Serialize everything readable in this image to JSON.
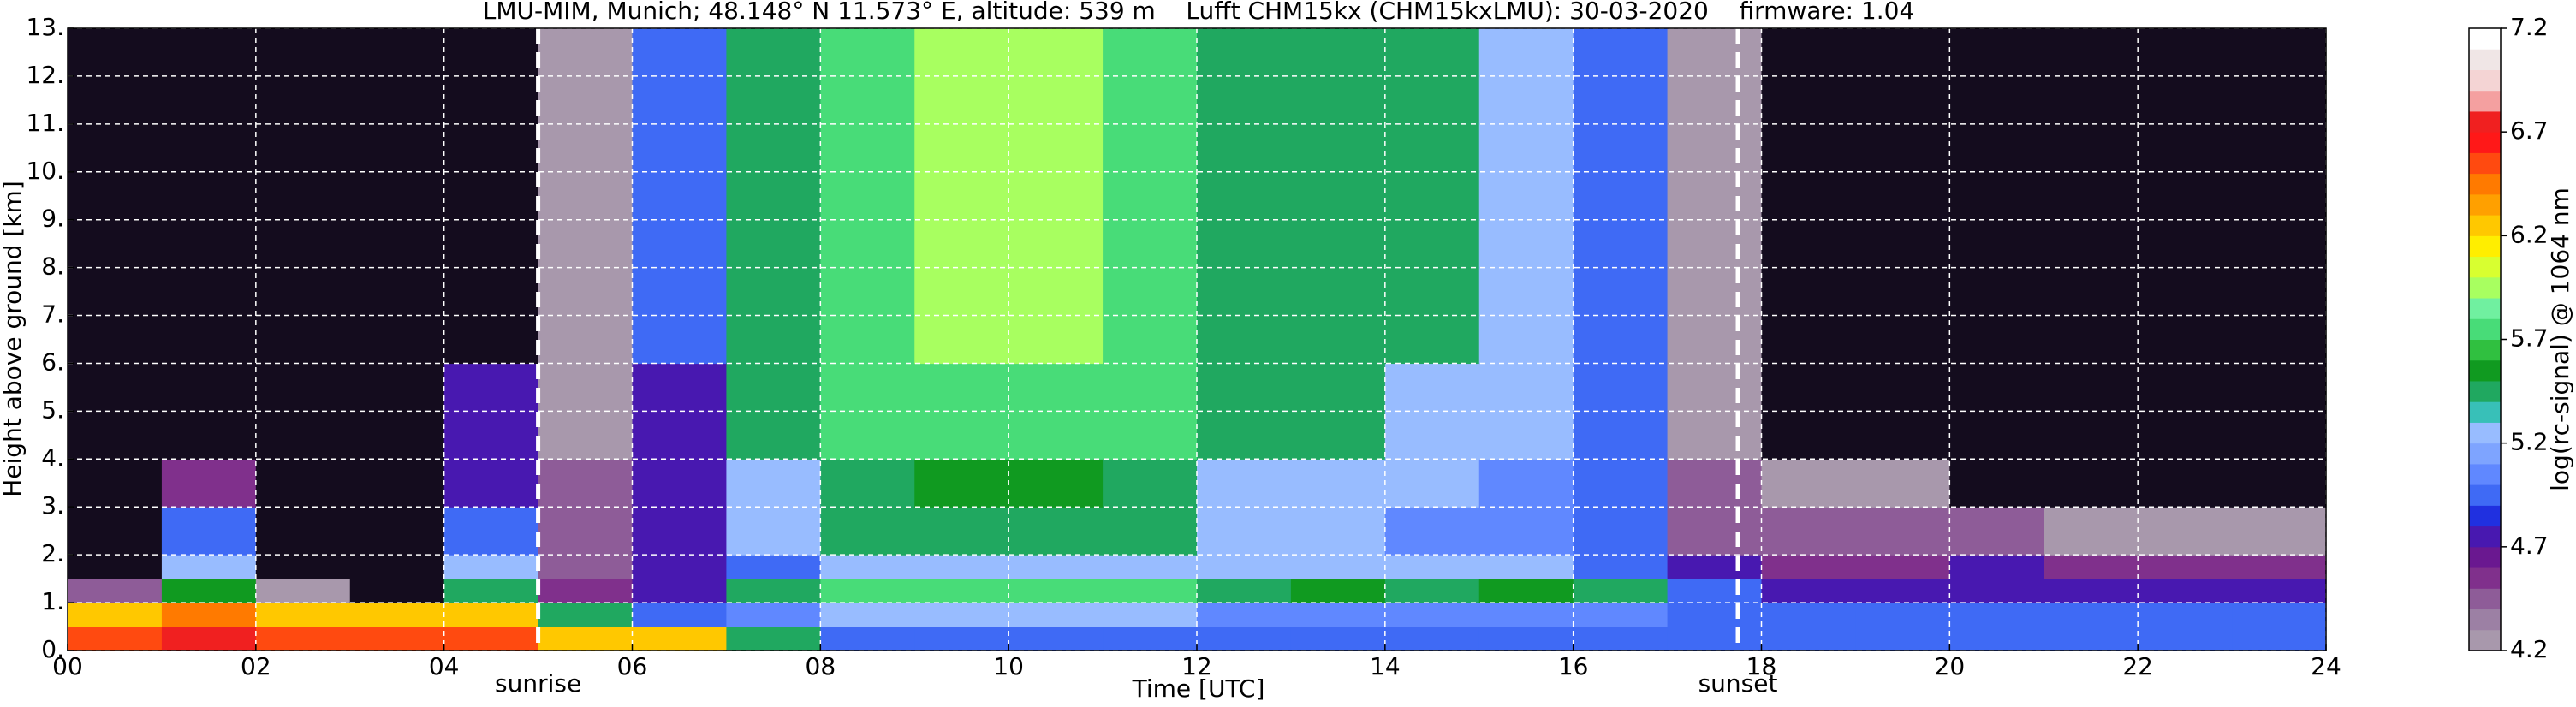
{
  "chart_data": {
    "type": "heatmap",
    "title": "LMU-MIM, Munich; 48.148° N 11.573° E, altitude: 539 m    Lufft CHM15kx (CHM15kxLMU): 30-03-2020    firmware: 1.04",
    "xlabel": "Time [UTC]",
    "ylabel": "Height above ground [km]",
    "x_edges": [
      0,
      1,
      2,
      3,
      4,
      5,
      6,
      7,
      8,
      9,
      10,
      11,
      12,
      13,
      14,
      15,
      16,
      17,
      18,
      19,
      20,
      21,
      22,
      23,
      24
    ],
    "y_edges": [
      0,
      0.5,
      1,
      1.5,
      2,
      3,
      4,
      6,
      9,
      13
    ],
    "values": [
      [
        6.6,
        6.7,
        6.6,
        6.5,
        6.6,
        6.3,
        6.2,
        5.4,
        5.0,
        5.0,
        5.0,
        5.0,
        5.0,
        5.0,
        5.0,
        5.0,
        5.0,
        4.9,
        4.9,
        4.9,
        4.9,
        4.9,
        4.9,
        4.9
      ],
      [
        6.3,
        6.4,
        6.2,
        6.2,
        6.3,
        5.5,
        5.0,
        5.1,
        5.2,
        5.2,
        5.2,
        5.2,
        5.1,
        5.1,
        5.1,
        5.1,
        5.1,
        5.0,
        5.0,
        5.0,
        4.9,
        4.9,
        4.9,
        4.9
      ],
      [
        4.4,
        5.6,
        4.2,
        4.0,
        5.4,
        4.6,
        4.8,
        5.5,
        5.7,
        5.7,
        5.7,
        5.7,
        5.5,
        5.6,
        5.5,
        5.6,
        5.4,
        5.0,
        4.8,
        4.8,
        4.8,
        4.8,
        4.7,
        4.7
      ],
      [
        4.0,
        5.3,
        3.9,
        3.9,
        5.2,
        4.5,
        4.7,
        5.0,
        5.2,
        5.2,
        5.2,
        5.2,
        5.3,
        5.3,
        5.3,
        5.3,
        5.0,
        4.7,
        4.6,
        4.6,
        4.7,
        4.6,
        4.6,
        4.6
      ],
      [
        3.9,
        5.0,
        3.9,
        3.9,
        4.9,
        4.4,
        4.8,
        5.2,
        5.4,
        5.5,
        5.5,
        5.4,
        5.2,
        5.2,
        5.1,
        5.1,
        4.9,
        4.5,
        4.4,
        4.4,
        4.4,
        4.3,
        4.3,
        4.3
      ],
      [
        3.8,
        4.6,
        3.8,
        3.8,
        4.8,
        4.4,
        4.8,
        5.3,
        5.5,
        5.6,
        5.6,
        5.5,
        5.3,
        5.3,
        5.2,
        5.1,
        4.9,
        4.4,
        4.2,
        4.2,
        4.1,
        4.1,
        4.1,
        4.1
      ],
      [
        3.8,
        3.8,
        3.8,
        3.8,
        4.7,
        4.3,
        4.8,
        5.4,
        5.7,
        5.8,
        5.8,
        5.7,
        5.4,
        5.4,
        5.3,
        5.2,
        5.0,
        4.3,
        4.0,
        4.0,
        4.0,
        4.0,
        4.0,
        4.0
      ],
      [
        3.7,
        3.7,
        3.7,
        3.7,
        3.9,
        4.3,
        4.9,
        5.5,
        5.8,
        5.9,
        5.9,
        5.8,
        5.5,
        5.5,
        5.4,
        5.3,
        5.0,
        4.3,
        3.9,
        3.9,
        3.9,
        3.9,
        3.9,
        3.9
      ],
      [
        3.7,
        3.7,
        3.7,
        3.7,
        3.7,
        4.3,
        4.9,
        5.5,
        5.8,
        5.9,
        5.9,
        5.8,
        5.5,
        5.5,
        5.4,
        5.3,
        5.0,
        4.3,
        3.9,
        3.9,
        3.9,
        3.9,
        3.9,
        3.9
      ]
    ],
    "xlim": [
      0,
      24
    ],
    "xticks": [
      {
        "value": 0,
        "label": "00"
      },
      {
        "value": 2,
        "label": "02"
      },
      {
        "value": 4,
        "label": "04"
      },
      {
        "value": 6,
        "label": "06"
      },
      {
        "value": 8,
        "label": "08"
      },
      10,
      12,
      14,
      16,
      18,
      20,
      22,
      24
    ],
    "ylim": [
      0,
      13
    ],
    "yticks": [
      {
        "value": 0,
        "label": "0."
      },
      {
        "value": 1,
        "label": "1."
      },
      {
        "value": 2,
        "label": "2."
      },
      {
        "value": 3,
        "label": "3."
      },
      {
        "value": 4,
        "label": "4."
      },
      {
        "value": 5,
        "label": "5."
      },
      {
        "value": 6,
        "label": "6."
      },
      {
        "value": 7,
        "label": "7."
      },
      {
        "value": 8,
        "label": "8."
      },
      {
        "value": 9,
        "label": "9."
      },
      {
        "value": 10,
        "label": "10."
      },
      {
        "value": 11,
        "label": "11."
      },
      {
        "value": 12,
        "label": "12."
      },
      {
        "value": 13,
        "label": "13."
      }
    ],
    "grid": true,
    "grid_color": "#ffffff",
    "markers": [
      {
        "label": "sunrise",
        "x": 5.0
      },
      {
        "label": "sunset",
        "x": 17.75
      }
    ],
    "colorbar": {
      "label": "log(rc-signal) @ 1064 nm",
      "lim": [
        4.2,
        7.2
      ],
      "ticks": [
        4.2,
        4.7,
        5.2,
        5.7,
        6.2,
        6.7,
        7.2
      ],
      "under_color": "#140c1e",
      "colors": [
        "#a898ac",
        "#9c80a4",
        "#8e5c98",
        "#80308c",
        "#6a1890",
        "#4818b0",
        "#2030e0",
        "#3f6af5",
        "#6088ff",
        "#7ea4ff",
        "#98bcff",
        "#38c0b8",
        "#20a860",
        "#109a20",
        "#30c040",
        "#48dc78",
        "#70f0a0",
        "#a8ff60",
        "#d8ff30",
        "#ffee00",
        "#ffc800",
        "#ffa000",
        "#ff7a00",
        "#ff4a10",
        "#ff1818",
        "#f02020",
        "#f4a0a0",
        "#f4d4d4",
        "#f0e6e6",
        "#ffffff"
      ]
    }
  }
}
